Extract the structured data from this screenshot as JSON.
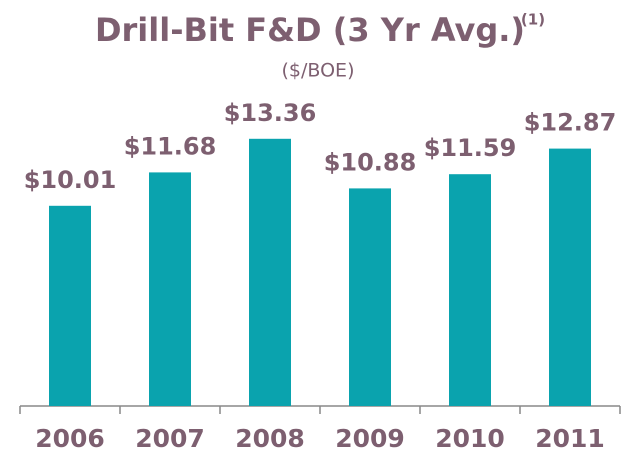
{
  "chart_data": {
    "type": "bar",
    "title": "Drill-Bit F&D (3 Yr Avg.)",
    "title_note": "(1)",
    "subtitle": "($/BOE)",
    "categories": [
      "2006",
      "2007",
      "2008",
      "2009",
      "2010",
      "2011"
    ],
    "values": [
      10.01,
      11.68,
      13.36,
      10.88,
      11.59,
      12.87
    ],
    "value_labels": [
      "$10.01",
      "$11.68",
      "$13.36",
      "$10.88",
      "$11.59",
      "$12.87"
    ],
    "color": "#0aa3ae"
  }
}
